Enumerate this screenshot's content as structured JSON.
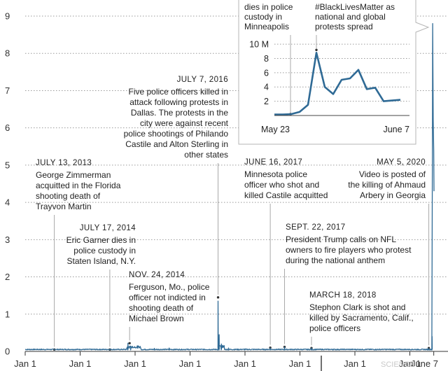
{
  "chart_data": {
    "type": "line",
    "color": "#2f6a95",
    "y_range": [
      0,
      9
    ],
    "y_ticks": [
      "0",
      "1",
      "2",
      "3",
      "4",
      "5",
      "6",
      "7",
      "8",
      "9"
    ],
    "x_tick_labels": [
      "Jan 1",
      "Jan 1",
      "Jan 1",
      "Jan 1",
      "Jan 1",
      "Jan 1",
      "Jan 1",
      "Jan 1",
      "June 7"
    ],
    "x_range_years": [
      2013.0,
      2020.45
    ],
    "baseline": 0.04,
    "spikes": [
      {
        "t": 2014.87,
        "v": 0.22
      },
      {
        "t": 2014.92,
        "v": 0.14
      },
      {
        "t": 2015.35,
        "v": 0.08
      },
      {
        "t": 2015.62,
        "v": 0.09
      },
      {
        "t": 2016.51,
        "v": 1.35
      },
      {
        "t": 2016.53,
        "v": 0.45
      },
      {
        "t": 2016.57,
        "v": 0.2
      },
      {
        "t": 2016.7,
        "v": 0.09
      },
      {
        "t": 2017.0,
        "v": 0.07
      },
      {
        "t": 2017.46,
        "v": 0.09
      },
      {
        "t": 2017.72,
        "v": 0.12
      },
      {
        "t": 2018.21,
        "v": 0.09
      },
      {
        "t": 2018.6,
        "v": 0.06
      },
      {
        "t": 2019.4,
        "v": 0.06
      },
      {
        "t": 2020.34,
        "v": 0.08
      },
      {
        "t": 2020.405,
        "v": 0.4
      },
      {
        "t": 2020.41,
        "v": 5.3
      },
      {
        "t": 2020.415,
        "v": 8.8
      },
      {
        "t": 2020.425,
        "v": 6.2
      },
      {
        "t": 2020.435,
        "v": 5.4
      },
      {
        "t": 2020.44,
        "v": 4.3
      }
    ],
    "annotations": [
      {
        "id": "a2013",
        "date": "JULY 13, 2013",
        "lines": [
          "George Zimmerman",
          "acquitted in the Florida",
          "shooting death of",
          "Trayvon Martin"
        ],
        "t": 2013.53,
        "v": 0.05,
        "align": "start"
      },
      {
        "id": "a2014a",
        "date": "JULY 17, 2014",
        "lines": [
          "Eric Garner dies in",
          "police custody in",
          "Staten Island, N.Y."
        ],
        "t": 2014.54,
        "v": 0.05,
        "align": "end"
      },
      {
        "id": "a2014b",
        "date": "NOV. 24, 2014",
        "lines": [
          "Ferguson, Mo., police",
          "officer not indicted in",
          "shooting death of",
          "Michael Brown"
        ],
        "t": 2014.9,
        "v": 0.22,
        "align": "start"
      },
      {
        "id": "a2016",
        "date": "JULY 7, 2016",
        "lines": [
          "Five police officers killed in",
          "attack following protests in",
          "Dallas. The protests in the",
          "city were against recent",
          "police shootings of Philando",
          "Castile and Alton Sterling in",
          "other states"
        ],
        "t": 2016.51,
        "v": 1.45,
        "align": "end"
      },
      {
        "id": "a2017a",
        "date": "JUNE 16, 2017",
        "lines": [
          "Minnesota police",
          "officer who shot and",
          "killed Castile acquitted"
        ],
        "t": 2017.46,
        "v": 0.1,
        "align": "start"
      },
      {
        "id": "a2017b",
        "date": "SEPT. 22, 2017",
        "lines": [
          "President Trump calls on NFL",
          "owners to fire players who protest",
          "during the national anthem"
        ],
        "t": 2017.72,
        "v": 0.12,
        "align": "start"
      },
      {
        "id": "a2018",
        "date": "MARCH 18, 2018",
        "lines": [
          "Stephon Clark is shot and",
          "killed by Sacramento, Calif.,",
          "police officers"
        ],
        "t": 2018.21,
        "v": 0.09,
        "align": "start"
      },
      {
        "id": "a2020",
        "date": "MAY 5, 2020",
        "lines": [
          "Video is posted of",
          "the killing of Ahmaud",
          "Arbery in Georgia"
        ],
        "t": 2020.345,
        "v": 0.09,
        "align": "end"
      }
    ],
    "inset": {
      "type": "line",
      "x_labels": [
        "May 23",
        "June 7"
      ],
      "y_ticks": [
        2,
        4,
        6,
        8,
        10
      ],
      "y_tick_labels": [
        "2",
        "4",
        "6",
        "8",
        "10 M"
      ],
      "y_range": [
        0,
        10.5
      ],
      "values": [
        0.15,
        0.15,
        0.2,
        0.5,
        1.5,
        8.8,
        4.0,
        3.0,
        5.0,
        5.2,
        6.4,
        3.7,
        3.9,
        2.0,
        2.1,
        2.2
      ],
      "callouts": [
        {
          "lines": [
            "dies in police",
            "custody in",
            "Minneapolis"
          ],
          "index": 2
        },
        {
          "lines": [
            "#BlackLivesMatter as",
            "national and global",
            "protests spread"
          ],
          "index": 5
        }
      ]
    }
  },
  "watermark": "SCIENCE"
}
